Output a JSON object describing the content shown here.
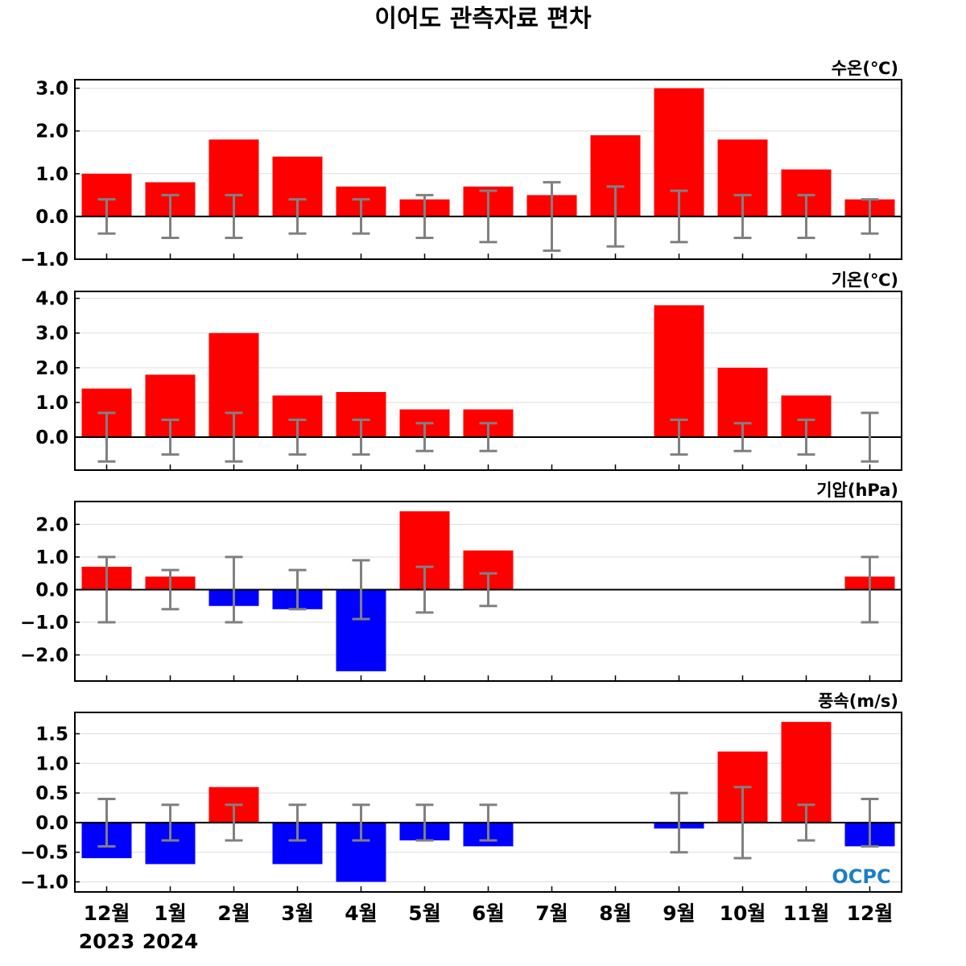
{
  "title": "이어도 관측자료 편차",
  "logo": "OCPC",
  "chart_data": {
    "type": "bar",
    "categories": [
      "12월",
      "1월",
      "2월",
      "3월",
      "4월",
      "5월",
      "6월",
      "7월",
      "8월",
      "9월",
      "10월",
      "11월",
      "12월"
    ],
    "years": [
      {
        "label": "2023",
        "category_index": 0
      },
      {
        "label": "2024",
        "category_index": 1
      }
    ],
    "colors": {
      "positive": "#ff0000",
      "negative": "#0000ff",
      "error_bar": "#808080",
      "grid": "#dddddd"
    },
    "panels": [
      {
        "unit": "수온(℃)",
        "ylim": [
          -1.0,
          3.2
        ],
        "yticks": [
          -1.0,
          0.0,
          1.0,
          2.0,
          3.0
        ],
        "ytick_labels": [
          "−1.0",
          "0.0",
          "1.0",
          "2.0",
          "3.0"
        ],
        "values": [
          1.0,
          0.8,
          1.8,
          1.4,
          0.7,
          0.4,
          0.7,
          0.5,
          1.9,
          3.0,
          1.8,
          1.1,
          0.4
        ],
        "error_low": [
          -0.4,
          -0.5,
          -0.5,
          -0.4,
          -0.4,
          -0.5,
          -0.6,
          -0.8,
          -0.7,
          -0.6,
          -0.5,
          -0.5,
          -0.4
        ],
        "error_high": [
          0.4,
          0.5,
          0.5,
          0.4,
          0.4,
          0.5,
          0.6,
          0.8,
          0.7,
          0.6,
          0.5,
          0.5,
          0.4
        ]
      },
      {
        "unit": "기온(℃)",
        "ylim": [
          -0.95,
          4.2
        ],
        "yticks": [
          0.0,
          1.0,
          2.0,
          3.0,
          4.0
        ],
        "ytick_labels": [
          "0.0",
          "1.0",
          "2.0",
          "3.0",
          "4.0"
        ],
        "values": [
          1.4,
          1.8,
          3.0,
          1.2,
          1.3,
          0.8,
          0.8,
          null,
          null,
          3.8,
          2.0,
          1.2,
          0.0
        ],
        "error_low": [
          -0.7,
          -0.5,
          -0.7,
          -0.5,
          -0.5,
          -0.4,
          -0.4,
          null,
          null,
          -0.5,
          -0.4,
          -0.5,
          -0.7
        ],
        "error_high": [
          0.7,
          0.5,
          0.7,
          0.5,
          0.5,
          0.4,
          0.4,
          null,
          null,
          0.5,
          0.4,
          0.5,
          0.7
        ]
      },
      {
        "unit": "기압(hPa)",
        "ylim": [
          -2.8,
          2.7
        ],
        "yticks": [
          -2.0,
          -1.0,
          0.0,
          1.0,
          2.0
        ],
        "ytick_labels": [
          "−2.0",
          "−1.0",
          "0.0",
          "1.0",
          "2.0"
        ],
        "values": [
          0.7,
          0.4,
          -0.5,
          -0.6,
          -2.5,
          2.4,
          1.2,
          null,
          null,
          null,
          null,
          null,
          0.4
        ],
        "error_low": [
          -1.0,
          -0.6,
          -1.0,
          -0.6,
          -0.9,
          -0.7,
          -0.5,
          null,
          null,
          null,
          null,
          null,
          -1.0
        ],
        "error_high": [
          1.0,
          0.6,
          1.0,
          0.6,
          0.9,
          0.7,
          0.5,
          null,
          null,
          null,
          null,
          null,
          1.0
        ]
      },
      {
        "unit": "풍속(m/s)",
        "ylim": [
          -1.17,
          1.86
        ],
        "yticks": [
          -1.0,
          -0.5,
          0.0,
          0.5,
          1.0,
          1.5
        ],
        "ytick_labels": [
          "−1.0",
          "−0.5",
          "0.0",
          "0.5",
          "1.0",
          "1.5"
        ],
        "values": [
          -0.6,
          -0.7,
          0.6,
          -0.7,
          -1.0,
          -0.3,
          -0.4,
          null,
          null,
          -0.1,
          1.2,
          1.7,
          -0.4
        ],
        "error_low": [
          -0.4,
          -0.3,
          -0.3,
          -0.3,
          -0.3,
          -0.3,
          -0.3,
          null,
          null,
          -0.5,
          -0.6,
          -0.3,
          -0.4
        ],
        "error_high": [
          0.4,
          0.3,
          0.3,
          0.3,
          0.3,
          0.3,
          0.3,
          null,
          null,
          0.5,
          0.6,
          0.3,
          0.4
        ]
      }
    ]
  }
}
